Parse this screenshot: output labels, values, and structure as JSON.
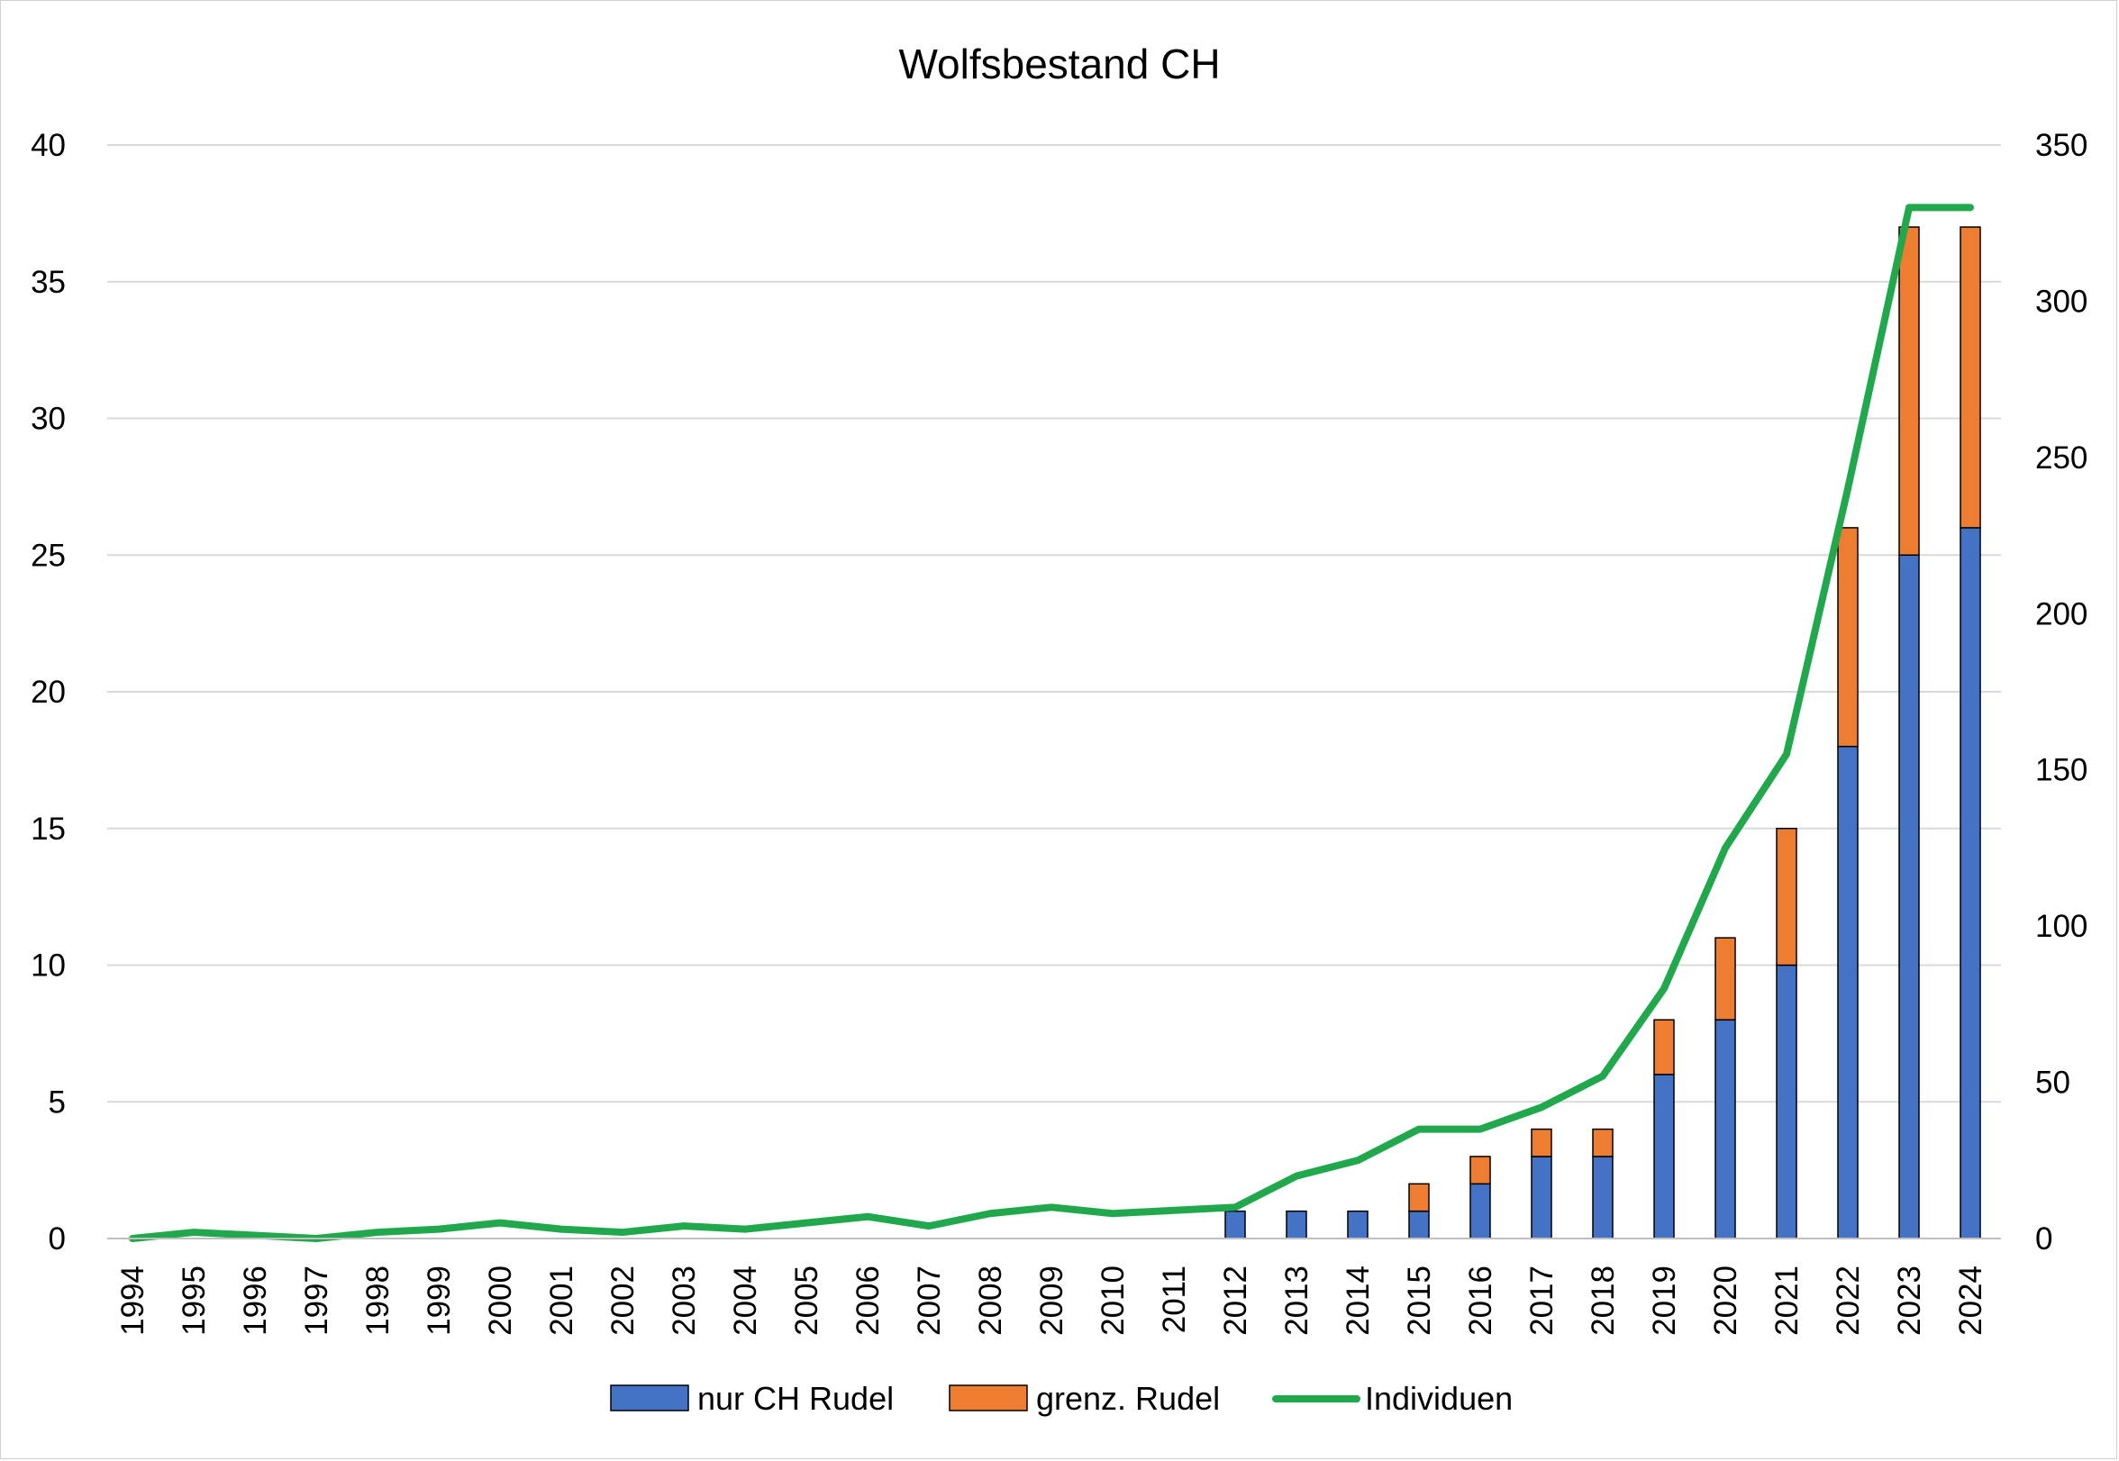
{
  "chart_data": {
    "type": "bar",
    "title": "Wolfsbestand CH",
    "categories": [
      "1994",
      "1995",
      "1996",
      "1997",
      "1998",
      "1999",
      "2000",
      "2001",
      "2002",
      "2003",
      "2004",
      "2005",
      "2006",
      "2007",
      "2008",
      "2009",
      "2010",
      "2011",
      "2012",
      "2013",
      "2014",
      "2015",
      "2016",
      "2017",
      "2018",
      "2019",
      "2020",
      "2021",
      "2022",
      "2023",
      "2024"
    ],
    "series": [
      {
        "name": "nur CH Rudel",
        "type": "bar",
        "stack": "rudel",
        "axis": "left",
        "color": "#4472C4",
        "values": [
          0,
          0,
          0,
          0,
          0,
          0,
          0,
          0,
          0,
          0,
          0,
          0,
          0,
          0,
          0,
          0,
          0,
          0,
          1,
          1,
          1,
          1,
          2,
          3,
          3,
          6,
          8,
          10,
          18,
          25,
          26
        ]
      },
      {
        "name": "grenz. Rudel",
        "type": "bar",
        "stack": "rudel",
        "axis": "left",
        "color": "#ED7D31",
        "values": [
          0,
          0,
          0,
          0,
          0,
          0,
          0,
          0,
          0,
          0,
          0,
          0,
          0,
          0,
          0,
          0,
          0,
          0,
          0,
          0,
          0,
          1,
          1,
          1,
          1,
          2,
          3,
          5,
          8,
          12,
          11
        ]
      },
      {
        "name": "Individuen",
        "type": "line",
        "axis": "right",
        "color": "#21A84D",
        "values": [
          0,
          2,
          1,
          0,
          2,
          3,
          5,
          3,
          2,
          4,
          3,
          5,
          7,
          4,
          8,
          10,
          8,
          9,
          10,
          20,
          25,
          35,
          35,
          42,
          52,
          80,
          125,
          155,
          240,
          330,
          330
        ]
      }
    ],
    "y_left": {
      "min": 0,
      "max": 40,
      "ticks": [
        0,
        5,
        10,
        15,
        20,
        25,
        30,
        35,
        40
      ]
    },
    "y_right": {
      "min": 0,
      "max": 350,
      "ticks": [
        0,
        50,
        100,
        150,
        200,
        250,
        300,
        350
      ]
    },
    "grid": true,
    "legend": "bottom"
  }
}
